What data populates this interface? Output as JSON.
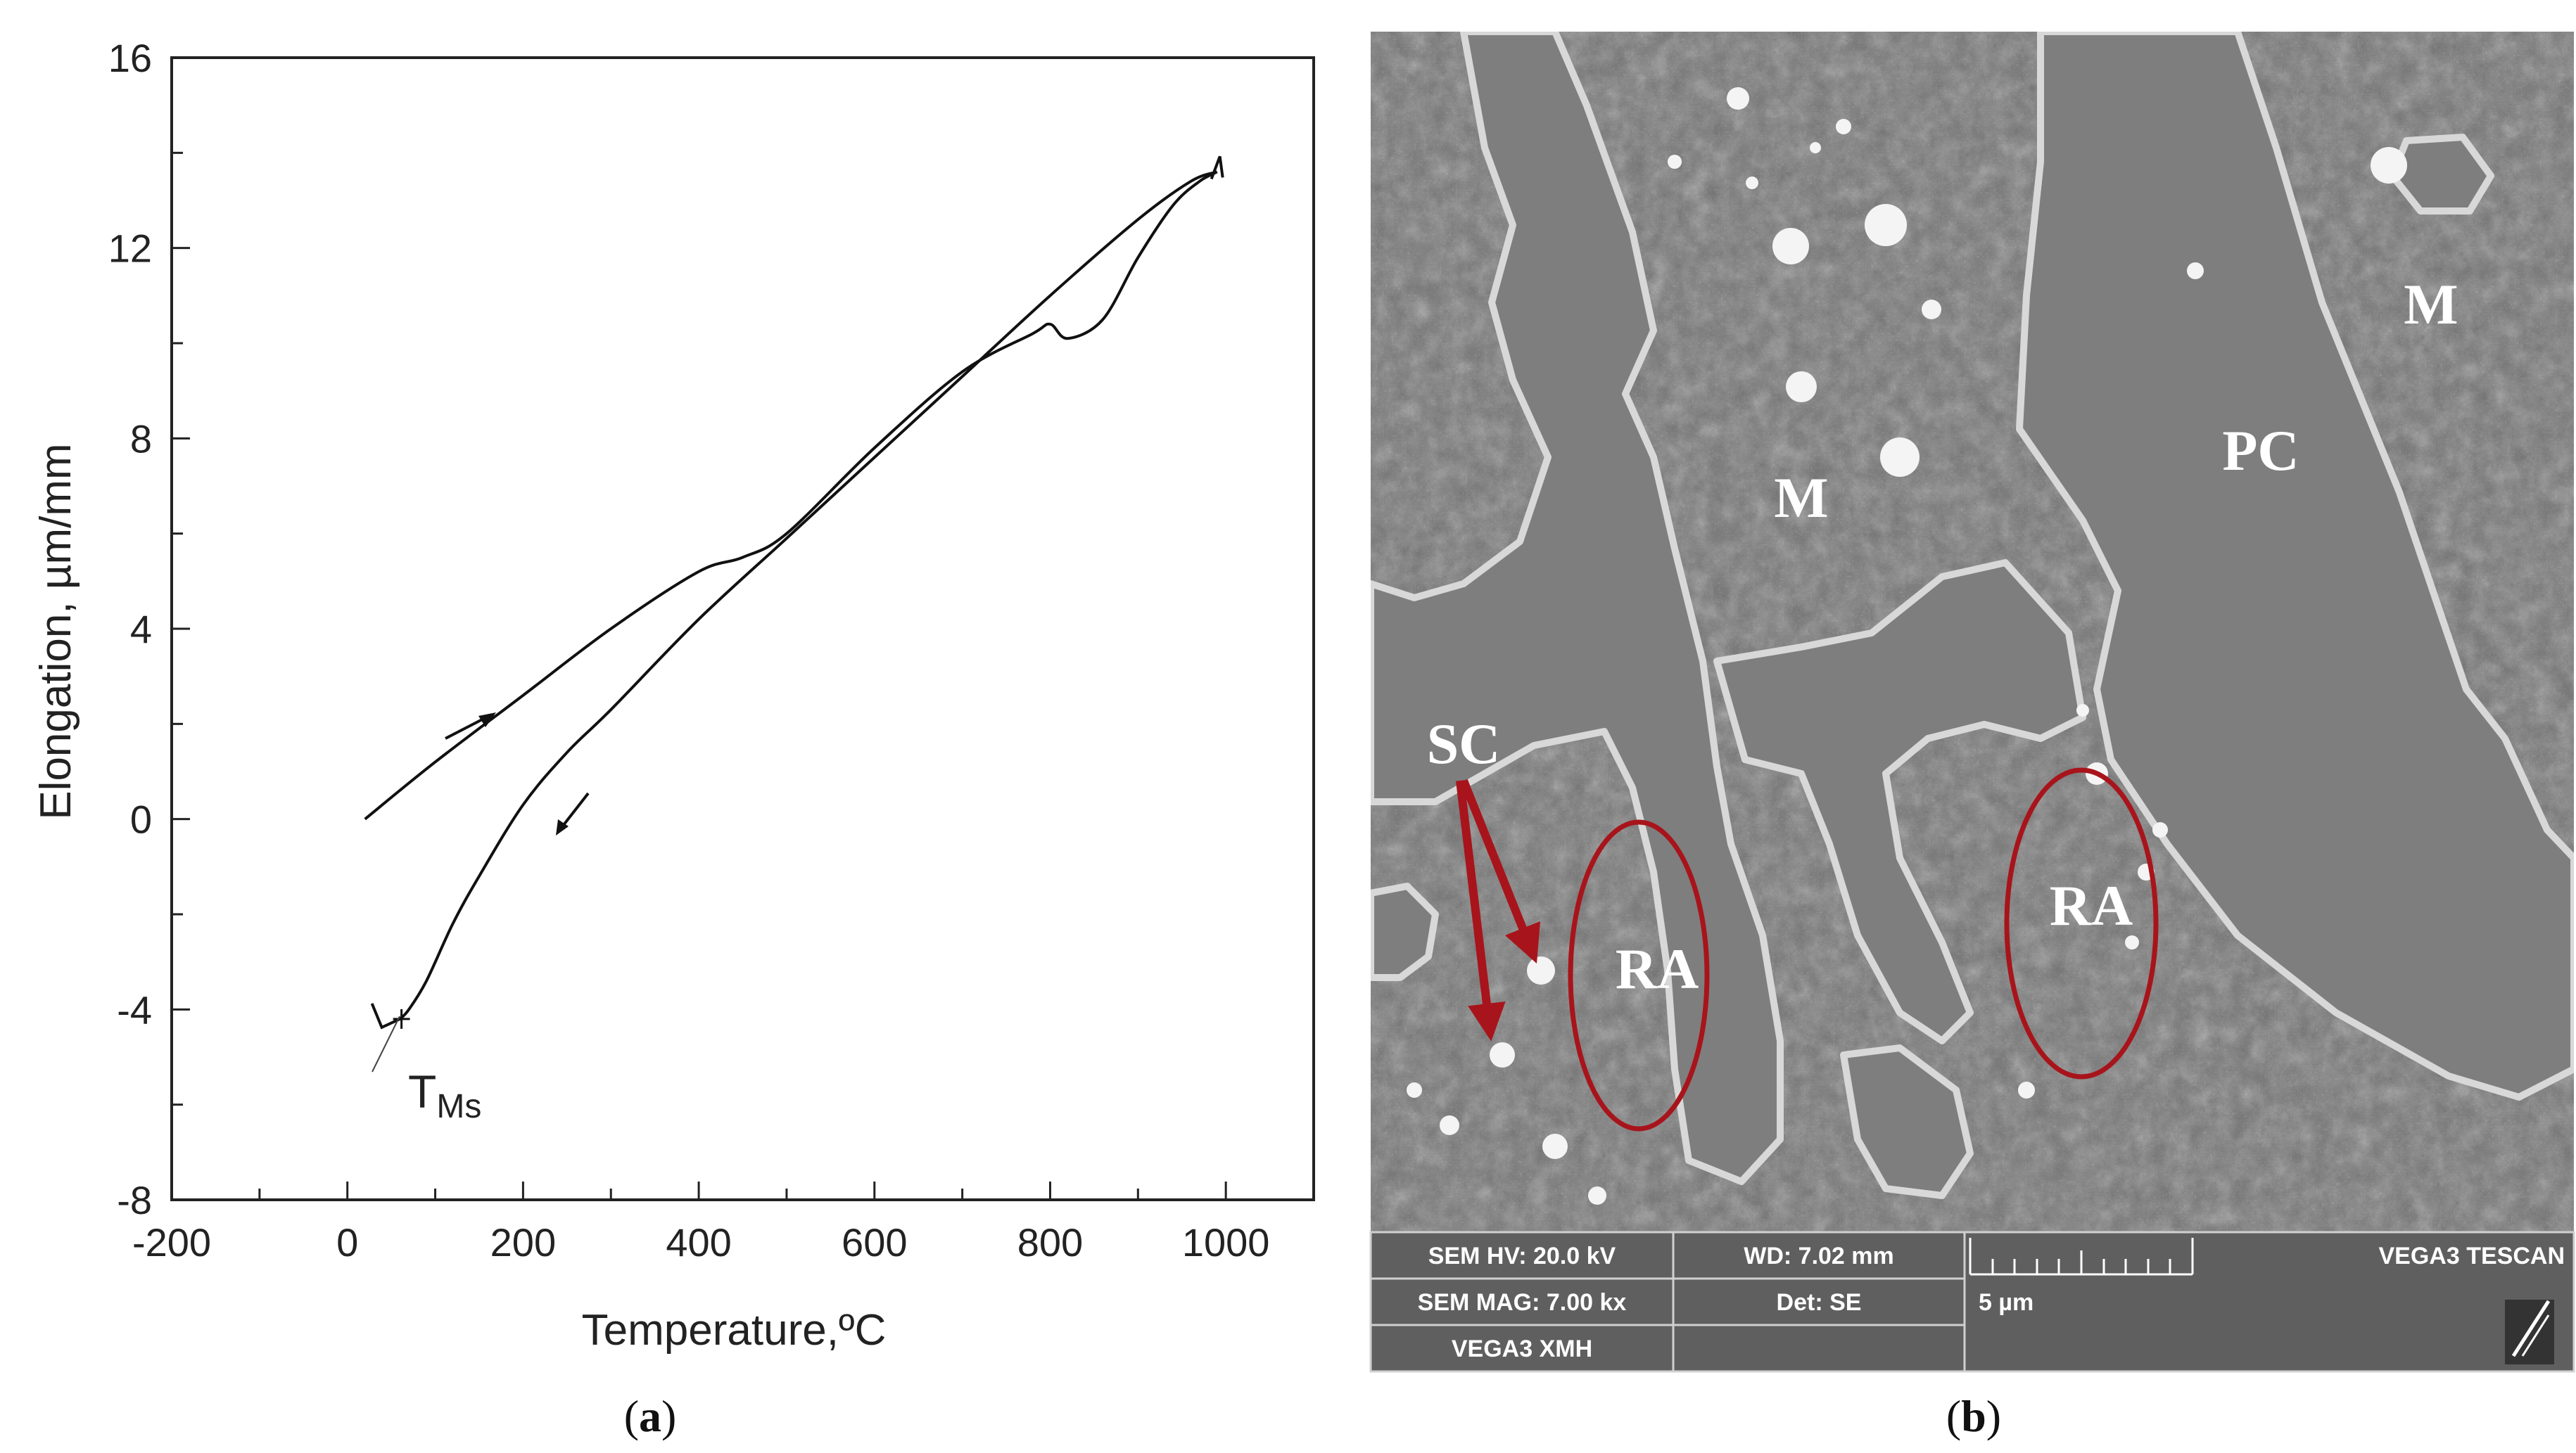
{
  "chart_data": {
    "type": "line",
    "title": "",
    "xlabel": "Temperature,ºC",
    "ylabel": "Elongation, µm/mm",
    "xlim": [
      -200,
      1100
    ],
    "ylim": [
      -8,
      16
    ],
    "x_ticks": [
      -200,
      0,
      200,
      400,
      600,
      800,
      1000
    ],
    "y_ticks": [
      -8,
      -4,
      0,
      4,
      8,
      12,
      16
    ],
    "grid": false,
    "series": [
      {
        "direction": "heating",
        "x": [
          20,
          100,
          200,
          300,
          400,
          450,
          500,
          600,
          700,
          780,
          800,
          820,
          860,
          900,
          940,
          970,
          990
        ],
        "y": [
          0,
          1.2,
          2.6,
          4.0,
          5.2,
          5.5,
          6.0,
          7.8,
          9.4,
          10.2,
          10.4,
          10.1,
          10.5,
          11.8,
          12.9,
          13.4,
          13.6
        ]
      },
      {
        "direction": "cooling",
        "x": [
          990,
          960,
          900,
          800,
          700,
          600,
          500,
          400,
          300,
          250,
          200,
          150,
          120,
          90,
          70,
          60
        ],
        "y": [
          13.6,
          13.4,
          12.6,
          11.0,
          9.3,
          7.6,
          5.9,
          4.2,
          2.3,
          1.4,
          0.3,
          -1.2,
          -2.2,
          -3.4,
          -4.0,
          -4.2
        ]
      }
    ],
    "annotations": {
      "transition_point": {
        "label_main": "T",
        "label_sub": "Ms",
        "x": 60,
        "y": -4.2
      }
    }
  },
  "sem_image": {
    "phase_labels": {
      "pc": "PC",
      "m_upper": "M",
      "m_right": "M",
      "sc": "SC",
      "ra_left": "RA",
      "ra_right": "RA"
    },
    "info_bar": {
      "hv": "SEM HV: 20.0 kV",
      "wd": "WD: 7.02 mm",
      "mag": "SEM MAG: 7.00 kx",
      "det": "Det: SE",
      "scale": "5 µm",
      "brand": "VEGA3 TESCAN",
      "model": "VEGA3 XMH"
    }
  },
  "captions": {
    "a": "a",
    "b": "b"
  },
  "colors": {
    "annotation_red": "#a8141b",
    "sem_background": "#777777",
    "info_bar": "#5f5f5f"
  }
}
